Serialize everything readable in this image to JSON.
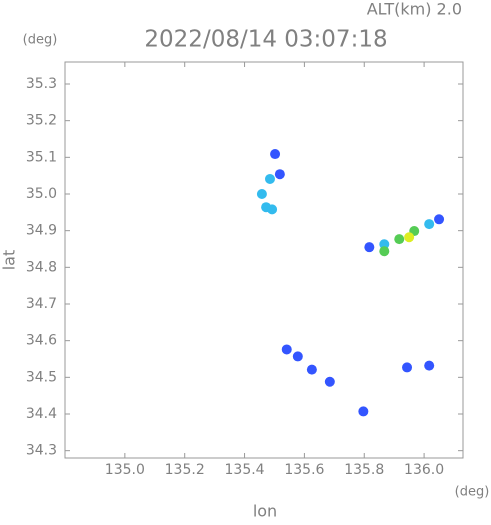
{
  "chart_data": {
    "type": "scatter",
    "annotation": "ALT(km) 2.0",
    "title": "2022/08/14 03:07:18",
    "y_unit": "(deg)",
    "x_unit": "(deg)",
    "ylabel": "lat",
    "xlabel": "lon",
    "xlim": [
      134.8,
      136.13
    ],
    "ylim": [
      34.28,
      35.36
    ],
    "xticks": [
      {
        "value": 135.0,
        "label": "135.0"
      },
      135.2,
      135.4,
      135.6,
      135.8,
      {
        "value": 136.0,
        "label": "136.0"
      }
    ],
    "yticks": [
      35.3,
      35.2,
      35.1,
      {
        "value": 35.0,
        "label": "35.0"
      },
      34.9,
      34.8,
      34.7,
      34.6,
      34.5,
      34.4,
      34.3
    ],
    "series": [
      {
        "color": "#3355ff",
        "x": [
          135.502,
          135.518,
          135.817,
          136.05,
          135.541,
          135.578,
          135.625,
          135.685,
          135.797,
          135.943,
          136.017
        ],
        "y": [
          35.109,
          35.054,
          34.855,
          34.931,
          34.576,
          34.557,
          34.521,
          34.488,
          34.407,
          34.527,
          34.532
        ]
      },
      {
        "color": "#33bbee",
        "x": [
          135.485,
          135.458,
          135.472,
          135.492,
          135.867,
          136.017
        ],
        "y": [
          35.041,
          35.0,
          34.964,
          34.958,
          34.863,
          34.918
        ]
      },
      {
        "color": "#55cc55",
        "x": [
          135.917,
          135.967,
          135.867
        ],
        "y": [
          34.877,
          34.899,
          34.844
        ]
      },
      {
        "color": "#ddee22",
        "x": [
          135.95
        ],
        "y": [
          34.882
        ]
      }
    ]
  }
}
